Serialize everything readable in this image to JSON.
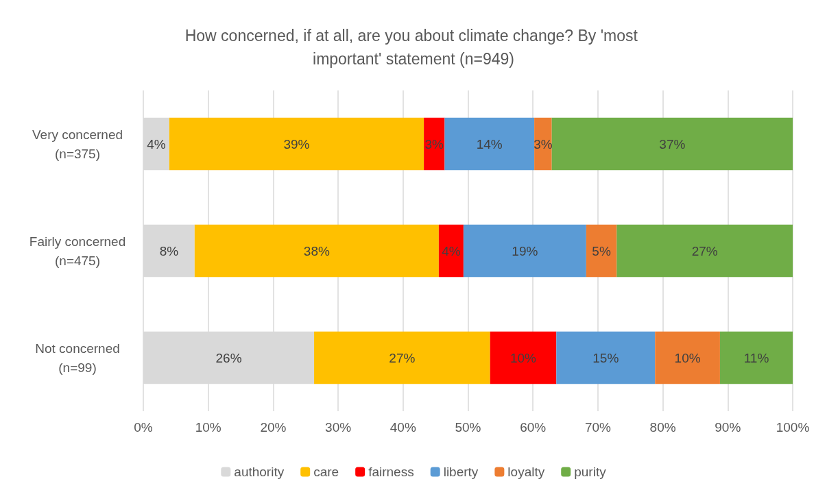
{
  "chart_data": {
    "type": "bar",
    "orientation": "horizontal",
    "stacked": true,
    "title": "How concerned, if at all, are you about climate change? By 'most important' statement (n=949)",
    "categories": [
      "Very concerned\n(n=375)",
      "Fairly concerned\n(n=475)",
      "Not concerned\n(n=99)"
    ],
    "series": [
      {
        "name": "authority",
        "color": "#d9d9d9",
        "values": [
          4.0,
          7.9,
          26.3
        ],
        "value_labels": [
          "4%",
          "8%",
          "26%"
        ]
      },
      {
        "name": "care",
        "color": "#ffc000",
        "values": [
          39.2,
          37.6,
          27.1
        ],
        "value_labels": [
          "39%",
          "38%",
          "27%"
        ]
      },
      {
        "name": "fairness",
        "color": "#ff0000",
        "values": [
          3.2,
          3.8,
          10.2
        ],
        "value_labels": [
          "3%",
          "4%",
          "10%"
        ]
      },
      {
        "name": "liberty",
        "color": "#5b9bd5",
        "values": [
          13.8,
          18.9,
          15.2
        ],
        "value_labels": [
          "14%",
          "19%",
          "15%"
        ]
      },
      {
        "name": "loyalty",
        "color": "#ed7d31",
        "values": [
          2.7,
          4.7,
          10.0
        ],
        "value_labels": [
          "3%",
          "5%",
          "10%"
        ]
      },
      {
        "name": "purity",
        "color": "#70ad47",
        "values": [
          37.1,
          27.1,
          11.2
        ],
        "value_labels": [
          "37%",
          "27%",
          "11%"
        ]
      }
    ],
    "xlim": [
      0,
      100
    ],
    "xticks": [
      {
        "value": 0,
        "label": "0%"
      },
      {
        "value": 10,
        "label": "10%"
      },
      {
        "value": 20,
        "label": "20%"
      },
      {
        "value": 30,
        "label": "30%"
      },
      {
        "value": 40,
        "label": "40%"
      },
      {
        "value": 50,
        "label": "50%"
      },
      {
        "value": 60,
        "label": "60%"
      },
      {
        "value": 70,
        "label": "70%"
      },
      {
        "value": 80,
        "label": "80%"
      },
      {
        "value": 90,
        "label": "90%"
      },
      {
        "value": 100,
        "label": "100%"
      }
    ],
    "grid": "x",
    "legend": "bottom"
  }
}
